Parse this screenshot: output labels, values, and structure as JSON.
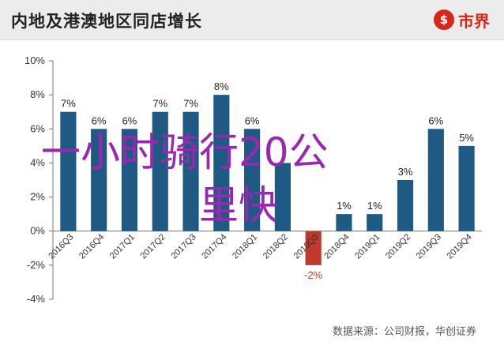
{
  "header": {
    "title": "内地及港澳地区同店增长",
    "logo_mark": "$",
    "logo_text": "市界"
  },
  "footer": {
    "source": "数据来源：公司财报，华创证券"
  },
  "overlay": {
    "line1": "一小时骑行20公",
    "line2": "里快"
  },
  "colors": {
    "bar": "#1f5a85",
    "negative_bar": "#c0392b",
    "overlay_text": "#9b27b0",
    "brand": "#d9261c"
  },
  "chart_data": {
    "type": "bar",
    "categories": [
      "2016Q3",
      "2016Q4",
      "2017Q1",
      "2017Q2",
      "2017Q3",
      "2017Q4",
      "2018Q1",
      "2018Q2",
      "2018Q3",
      "2018Q4",
      "2019Q1",
      "2019Q2",
      "2019Q3",
      "2019Q4"
    ],
    "values": [
      7,
      6,
      6,
      7,
      7,
      8,
      6,
      4,
      -2,
      1,
      1,
      3,
      6,
      5
    ],
    "data_labels": [
      "7%",
      "6%",
      "6%",
      "7%",
      "7%",
      "8%",
      "6%",
      "",
      "-2%",
      "1%",
      "1%",
      "3%",
      "6%",
      "5%"
    ],
    "ylim": [
      -4,
      10
    ],
    "yticks": [
      -4,
      -2,
      0,
      2,
      4,
      6,
      8,
      10
    ],
    "ytick_labels": [
      "-4%",
      "-2%",
      "0%",
      "2%",
      "4%",
      "6%",
      "8%",
      "10%"
    ],
    "grid": false
  }
}
